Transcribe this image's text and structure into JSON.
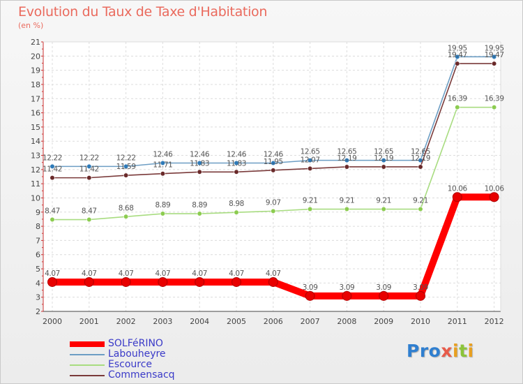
{
  "title": "Evolution du Taux de Taxe d'Habitation",
  "unit_label": "(en %)",
  "logo": {
    "text": "Proxiti",
    "letters": [
      {
        "ch": "P",
        "color": "#2f7fd0"
      },
      {
        "ch": "r",
        "color": "#2f7fd0"
      },
      {
        "ch": "o",
        "color": "#2f7fd0"
      },
      {
        "ch": "x",
        "color": "#e85b4a"
      },
      {
        "ch": "i",
        "color": "#e8a020"
      },
      {
        "ch": "t",
        "color": "#8cc43a"
      },
      {
        "ch": "i",
        "color": "#e8a020"
      }
    ]
  },
  "chart_data": {
    "type": "line",
    "title": "Evolution du Taux de Taxe d'Habitation",
    "ylabel": "(en %)",
    "xlabel": "",
    "x": [
      "2000",
      "2001",
      "2002",
      "2003",
      "2004",
      "2005",
      "2006",
      "2007",
      "2008",
      "2009",
      "2010",
      "2011",
      "2012"
    ],
    "ylim": [
      2,
      21
    ],
    "yticks": [
      "2",
      "3",
      "4",
      "5",
      "6",
      "7",
      "8",
      "9",
      "10",
      "11",
      "12",
      "13",
      "14",
      "15",
      "16",
      "17",
      "18",
      "19",
      "20",
      "21"
    ],
    "grid": true,
    "legend_position": "bottom-left",
    "series": [
      {
        "name": "SOLFéRINO",
        "color": "#ff0000",
        "emphasis": true,
        "values": [
          4.07,
          4.07,
          4.07,
          4.07,
          4.07,
          4.07,
          4.07,
          3.09,
          3.09,
          3.09,
          3.09,
          10.06,
          10.06
        ],
        "labels": [
          "4.07",
          "4.07",
          "4.07",
          "4.07",
          "4.07",
          "4.07",
          "4.07",
          "3.09",
          "3.09",
          "3.09",
          "3.09",
          "10.06",
          "10.06"
        ]
      },
      {
        "name": "Labouheyre",
        "color": "#6d9ec4",
        "marker": "#2e7ab8",
        "values": [
          12.22,
          12.22,
          12.22,
          12.46,
          12.46,
          12.46,
          12.46,
          12.65,
          12.65,
          12.65,
          12.65,
          19.95,
          19.95
        ],
        "labels": [
          "12.22",
          "12.22",
          "12.22",
          "12.46",
          "12.46",
          "12.46",
          "12.46",
          "12.65",
          "12.65",
          "12.65",
          "12.65",
          "19.95",
          "19.95"
        ]
      },
      {
        "name": "Escource",
        "color": "#a8dc80",
        "marker": "#8ccc50",
        "values": [
          8.47,
          8.47,
          8.68,
          8.89,
          8.89,
          8.98,
          9.07,
          9.21,
          9.21,
          9.21,
          9.21,
          16.39,
          16.39
        ],
        "labels": [
          "8.47",
          "8.47",
          "8.68",
          "8.89",
          "8.89",
          "8.98",
          "9.07",
          "9.21",
          "9.21",
          "9.21",
          "9.21",
          "16.39",
          "16.39"
        ]
      },
      {
        "name": "Commensacq",
        "color": "#7a3a3a",
        "marker": "#6a2a2a",
        "values": [
          11.42,
          11.42,
          11.59,
          11.71,
          11.83,
          11.83,
          11.95,
          12.07,
          12.19,
          12.19,
          12.19,
          19.47,
          19.47
        ],
        "labels": [
          "11.42",
          "11.42",
          "11.59",
          "11.71",
          "11.83",
          "11.83",
          "11.95",
          "12.07",
          "12.19",
          "12.19",
          "12.19",
          "19.47",
          "19.47"
        ]
      }
    ]
  }
}
